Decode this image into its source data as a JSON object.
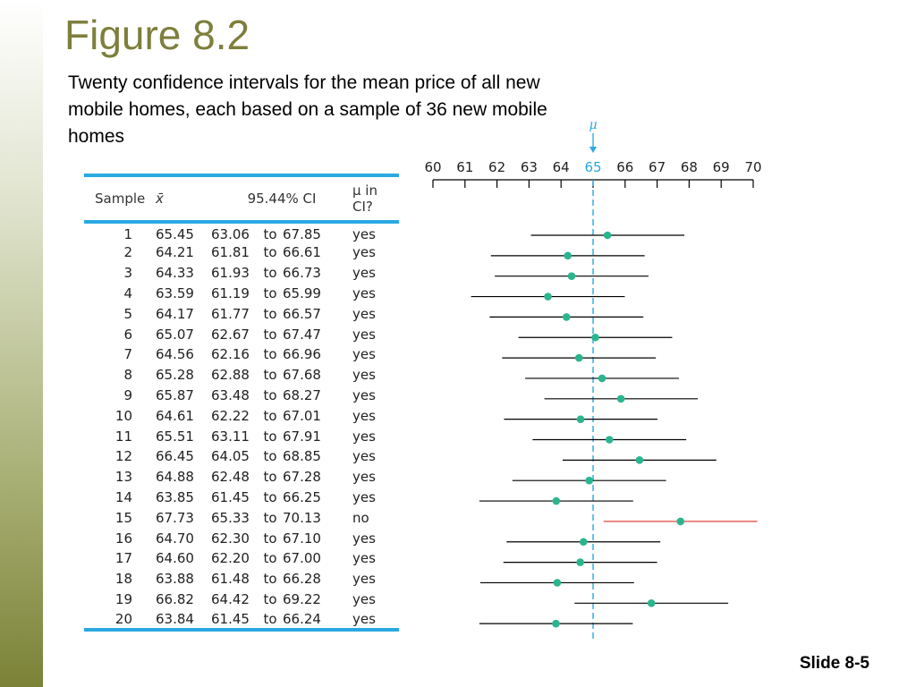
{
  "title": "Figure 8.2",
  "subtitle": "Twenty confidence intervals for the mean price of all new mobile homes, each based on a sample of 36 new mobile homes",
  "slide_label": "Slide 8-5",
  "colors": {
    "accent_title": "#7d7f3c",
    "table_rule": "#29a9e0",
    "mean_line": "#29a9e0",
    "point": "#2bb58e",
    "interval": "#000000",
    "interval_miss": "#e0443c"
  },
  "table": {
    "headers": {
      "sample": "Sample",
      "xbar": "x̄",
      "ci": "95.44% CI",
      "mu_in_ci": "μ in CI?"
    },
    "connector": "to",
    "rows": [
      {
        "sample": "1",
        "xbar": "65.45",
        "lower": "63.06",
        "upper": "67.85",
        "in_ci": "yes"
      },
      {
        "sample": "2",
        "xbar": "64.21",
        "lower": "61.81",
        "upper": "66.61",
        "in_ci": "yes"
      },
      {
        "sample": "3",
        "xbar": "64.33",
        "lower": "61.93",
        "upper": "66.73",
        "in_ci": "yes"
      },
      {
        "sample": "4",
        "xbar": "63.59",
        "lower": "61.19",
        "upper": "65.99",
        "in_ci": "yes"
      },
      {
        "sample": "5",
        "xbar": "64.17",
        "lower": "61.77",
        "upper": "66.57",
        "in_ci": "yes"
      },
      {
        "sample": "6",
        "xbar": "65.07",
        "lower": "62.67",
        "upper": "67.47",
        "in_ci": "yes"
      },
      {
        "sample": "7",
        "xbar": "64.56",
        "lower": "62.16",
        "upper": "66.96",
        "in_ci": "yes"
      },
      {
        "sample": "8",
        "xbar": "65.28",
        "lower": "62.88",
        "upper": "67.68",
        "in_ci": "yes"
      },
      {
        "sample": "9",
        "xbar": "65.87",
        "lower": "63.48",
        "upper": "68.27",
        "in_ci": "yes"
      },
      {
        "sample": "10",
        "xbar": "64.61",
        "lower": "62.22",
        "upper": "67.01",
        "in_ci": "yes"
      },
      {
        "sample": "11",
        "xbar": "65.51",
        "lower": "63.11",
        "upper": "67.91",
        "in_ci": "yes"
      },
      {
        "sample": "12",
        "xbar": "66.45",
        "lower": "64.05",
        "upper": "68.85",
        "in_ci": "yes"
      },
      {
        "sample": "13",
        "xbar": "64.88",
        "lower": "62.48",
        "upper": "67.28",
        "in_ci": "yes"
      },
      {
        "sample": "14",
        "xbar": "63.85",
        "lower": "61.45",
        "upper": "66.25",
        "in_ci": "yes"
      },
      {
        "sample": "15",
        "xbar": "67.73",
        "lower": "65.33",
        "upper": "70.13",
        "in_ci": "no"
      },
      {
        "sample": "16",
        "xbar": "64.70",
        "lower": "62.30",
        "upper": "67.10",
        "in_ci": "yes"
      },
      {
        "sample": "17",
        "xbar": "64.60",
        "lower": "62.20",
        "upper": "67.00",
        "in_ci": "yes"
      },
      {
        "sample": "18",
        "xbar": "63.88",
        "lower": "61.48",
        "upper": "66.28",
        "in_ci": "yes"
      },
      {
        "sample": "19",
        "xbar": "66.82",
        "lower": "64.42",
        "upper": "69.22",
        "in_ci": "yes"
      },
      {
        "sample": "20",
        "xbar": "63.84",
        "lower": "61.45",
        "upper": "66.24",
        "in_ci": "yes"
      }
    ]
  },
  "chart_data": {
    "type": "scatter",
    "title": "",
    "xlabel": "",
    "ylabel": "",
    "xlim": [
      60,
      70
    ],
    "ticks": [
      60,
      61,
      62,
      63,
      64,
      65,
      66,
      67,
      68,
      69,
      70
    ],
    "highlight_tick": 65,
    "mean_label": "μ",
    "mean_value": 65,
    "grid": false,
    "intervals": [
      {
        "sample": 1,
        "xbar": 65.45,
        "lower": 63.06,
        "upper": 67.85
      },
      {
        "sample": 2,
        "xbar": 64.21,
        "lower": 61.81,
        "upper": 66.61
      },
      {
        "sample": 3,
        "xbar": 64.33,
        "lower": 61.93,
        "upper": 66.73
      },
      {
        "sample": 4,
        "xbar": 63.59,
        "lower": 61.19,
        "upper": 65.99
      },
      {
        "sample": 5,
        "xbar": 64.17,
        "lower": 61.77,
        "upper": 66.57
      },
      {
        "sample": 6,
        "xbar": 65.07,
        "lower": 62.67,
        "upper": 67.47
      },
      {
        "sample": 7,
        "xbar": 64.56,
        "lower": 62.16,
        "upper": 66.96
      },
      {
        "sample": 8,
        "xbar": 65.28,
        "lower": 62.88,
        "upper": 67.68
      },
      {
        "sample": 9,
        "xbar": 65.87,
        "lower": 63.48,
        "upper": 68.27
      },
      {
        "sample": 10,
        "xbar": 64.61,
        "lower": 62.22,
        "upper": 67.01
      },
      {
        "sample": 11,
        "xbar": 65.51,
        "lower": 63.11,
        "upper": 67.91
      },
      {
        "sample": 12,
        "xbar": 66.45,
        "lower": 64.05,
        "upper": 68.85
      },
      {
        "sample": 13,
        "xbar": 64.88,
        "lower": 62.48,
        "upper": 67.28
      },
      {
        "sample": 14,
        "xbar": 63.85,
        "lower": 61.45,
        "upper": 66.25
      },
      {
        "sample": 15,
        "xbar": 67.73,
        "lower": 65.33,
        "upper": 70.13
      },
      {
        "sample": 16,
        "xbar": 64.7,
        "lower": 62.3,
        "upper": 67.1
      },
      {
        "sample": 17,
        "xbar": 64.6,
        "lower": 62.2,
        "upper": 67.0
      },
      {
        "sample": 18,
        "xbar": 63.88,
        "lower": 61.48,
        "upper": 66.28
      },
      {
        "sample": 19,
        "xbar": 66.82,
        "lower": 64.42,
        "upper": 69.22
      },
      {
        "sample": 20,
        "xbar": 63.84,
        "lower": 61.45,
        "upper": 66.24
      }
    ]
  }
}
